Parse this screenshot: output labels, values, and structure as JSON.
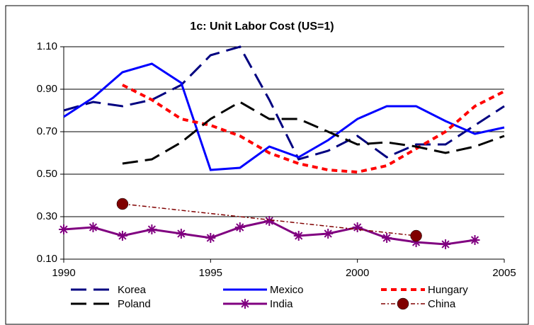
{
  "chart_data": {
    "type": "line",
    "title": "1c: Unit Labor Cost (US=1)",
    "x": [
      1990,
      1991,
      1992,
      1993,
      1994,
      1995,
      1996,
      1997,
      1998,
      1999,
      2000,
      2001,
      2002,
      2003,
      2004,
      2005
    ],
    "xlim": [
      1990,
      2005
    ],
    "xticks": [
      1990,
      1995,
      2000,
      2005
    ],
    "ylim": [
      0.1,
      1.1
    ],
    "yticks": [
      {
        "value": 0.1,
        "label": "0.10"
      },
      {
        "value": 0.3,
        "label": "0.30"
      },
      {
        "value": 0.5,
        "label": "0.50"
      },
      {
        "value": 0.7,
        "label": "0.70"
      },
      {
        "value": 0.9,
        "label": "0.90"
      },
      {
        "value": 1.1,
        "label": "1.10"
      }
    ],
    "grid": true,
    "series": [
      {
        "name": "Korea",
        "color": "#000080",
        "line_style": "dashed",
        "values": [
          0.8,
          0.84,
          0.82,
          0.85,
          0.92,
          1.06,
          1.1,
          0.85,
          0.57,
          0.61,
          0.68,
          0.58,
          0.64,
          0.64,
          0.73,
          0.82
        ]
      },
      {
        "name": "Mexico",
        "color": "#0000ff",
        "line_style": "solid",
        "values": [
          0.77,
          0.86,
          0.98,
          1.02,
          0.93,
          0.52,
          0.53,
          0.63,
          0.58,
          0.66,
          0.76,
          0.82,
          0.82,
          0.75,
          0.69,
          0.72
        ]
      },
      {
        "name": "Hungary",
        "color": "#ff0000",
        "line_style": "dotted",
        "values": [
          null,
          null,
          0.92,
          0.85,
          0.76,
          0.73,
          0.68,
          0.6,
          0.55,
          0.52,
          0.51,
          0.54,
          0.62,
          0.7,
          0.82,
          0.89
        ]
      },
      {
        "name": "Poland",
        "color": "#000000",
        "line_style": "dashed",
        "values": [
          null,
          null,
          0.55,
          0.57,
          0.65,
          0.76,
          0.84,
          0.76,
          0.76,
          0.7,
          0.64,
          0.65,
          0.63,
          0.6,
          0.63,
          0.68
        ]
      },
      {
        "name": "India",
        "color": "#800080",
        "line_style": "solid",
        "marker": "asterisk",
        "values": [
          0.24,
          0.25,
          0.21,
          0.24,
          0.22,
          0.2,
          0.25,
          0.28,
          0.21,
          0.22,
          0.25,
          0.2,
          0.18,
          0.17,
          0.19,
          null
        ]
      },
      {
        "name": "China",
        "color": "#800000",
        "line_style": "dashdot",
        "marker": "circle",
        "values": [
          null,
          null,
          0.36,
          null,
          null,
          null,
          null,
          null,
          null,
          null,
          null,
          null,
          0.21,
          null,
          null,
          null
        ]
      }
    ]
  }
}
